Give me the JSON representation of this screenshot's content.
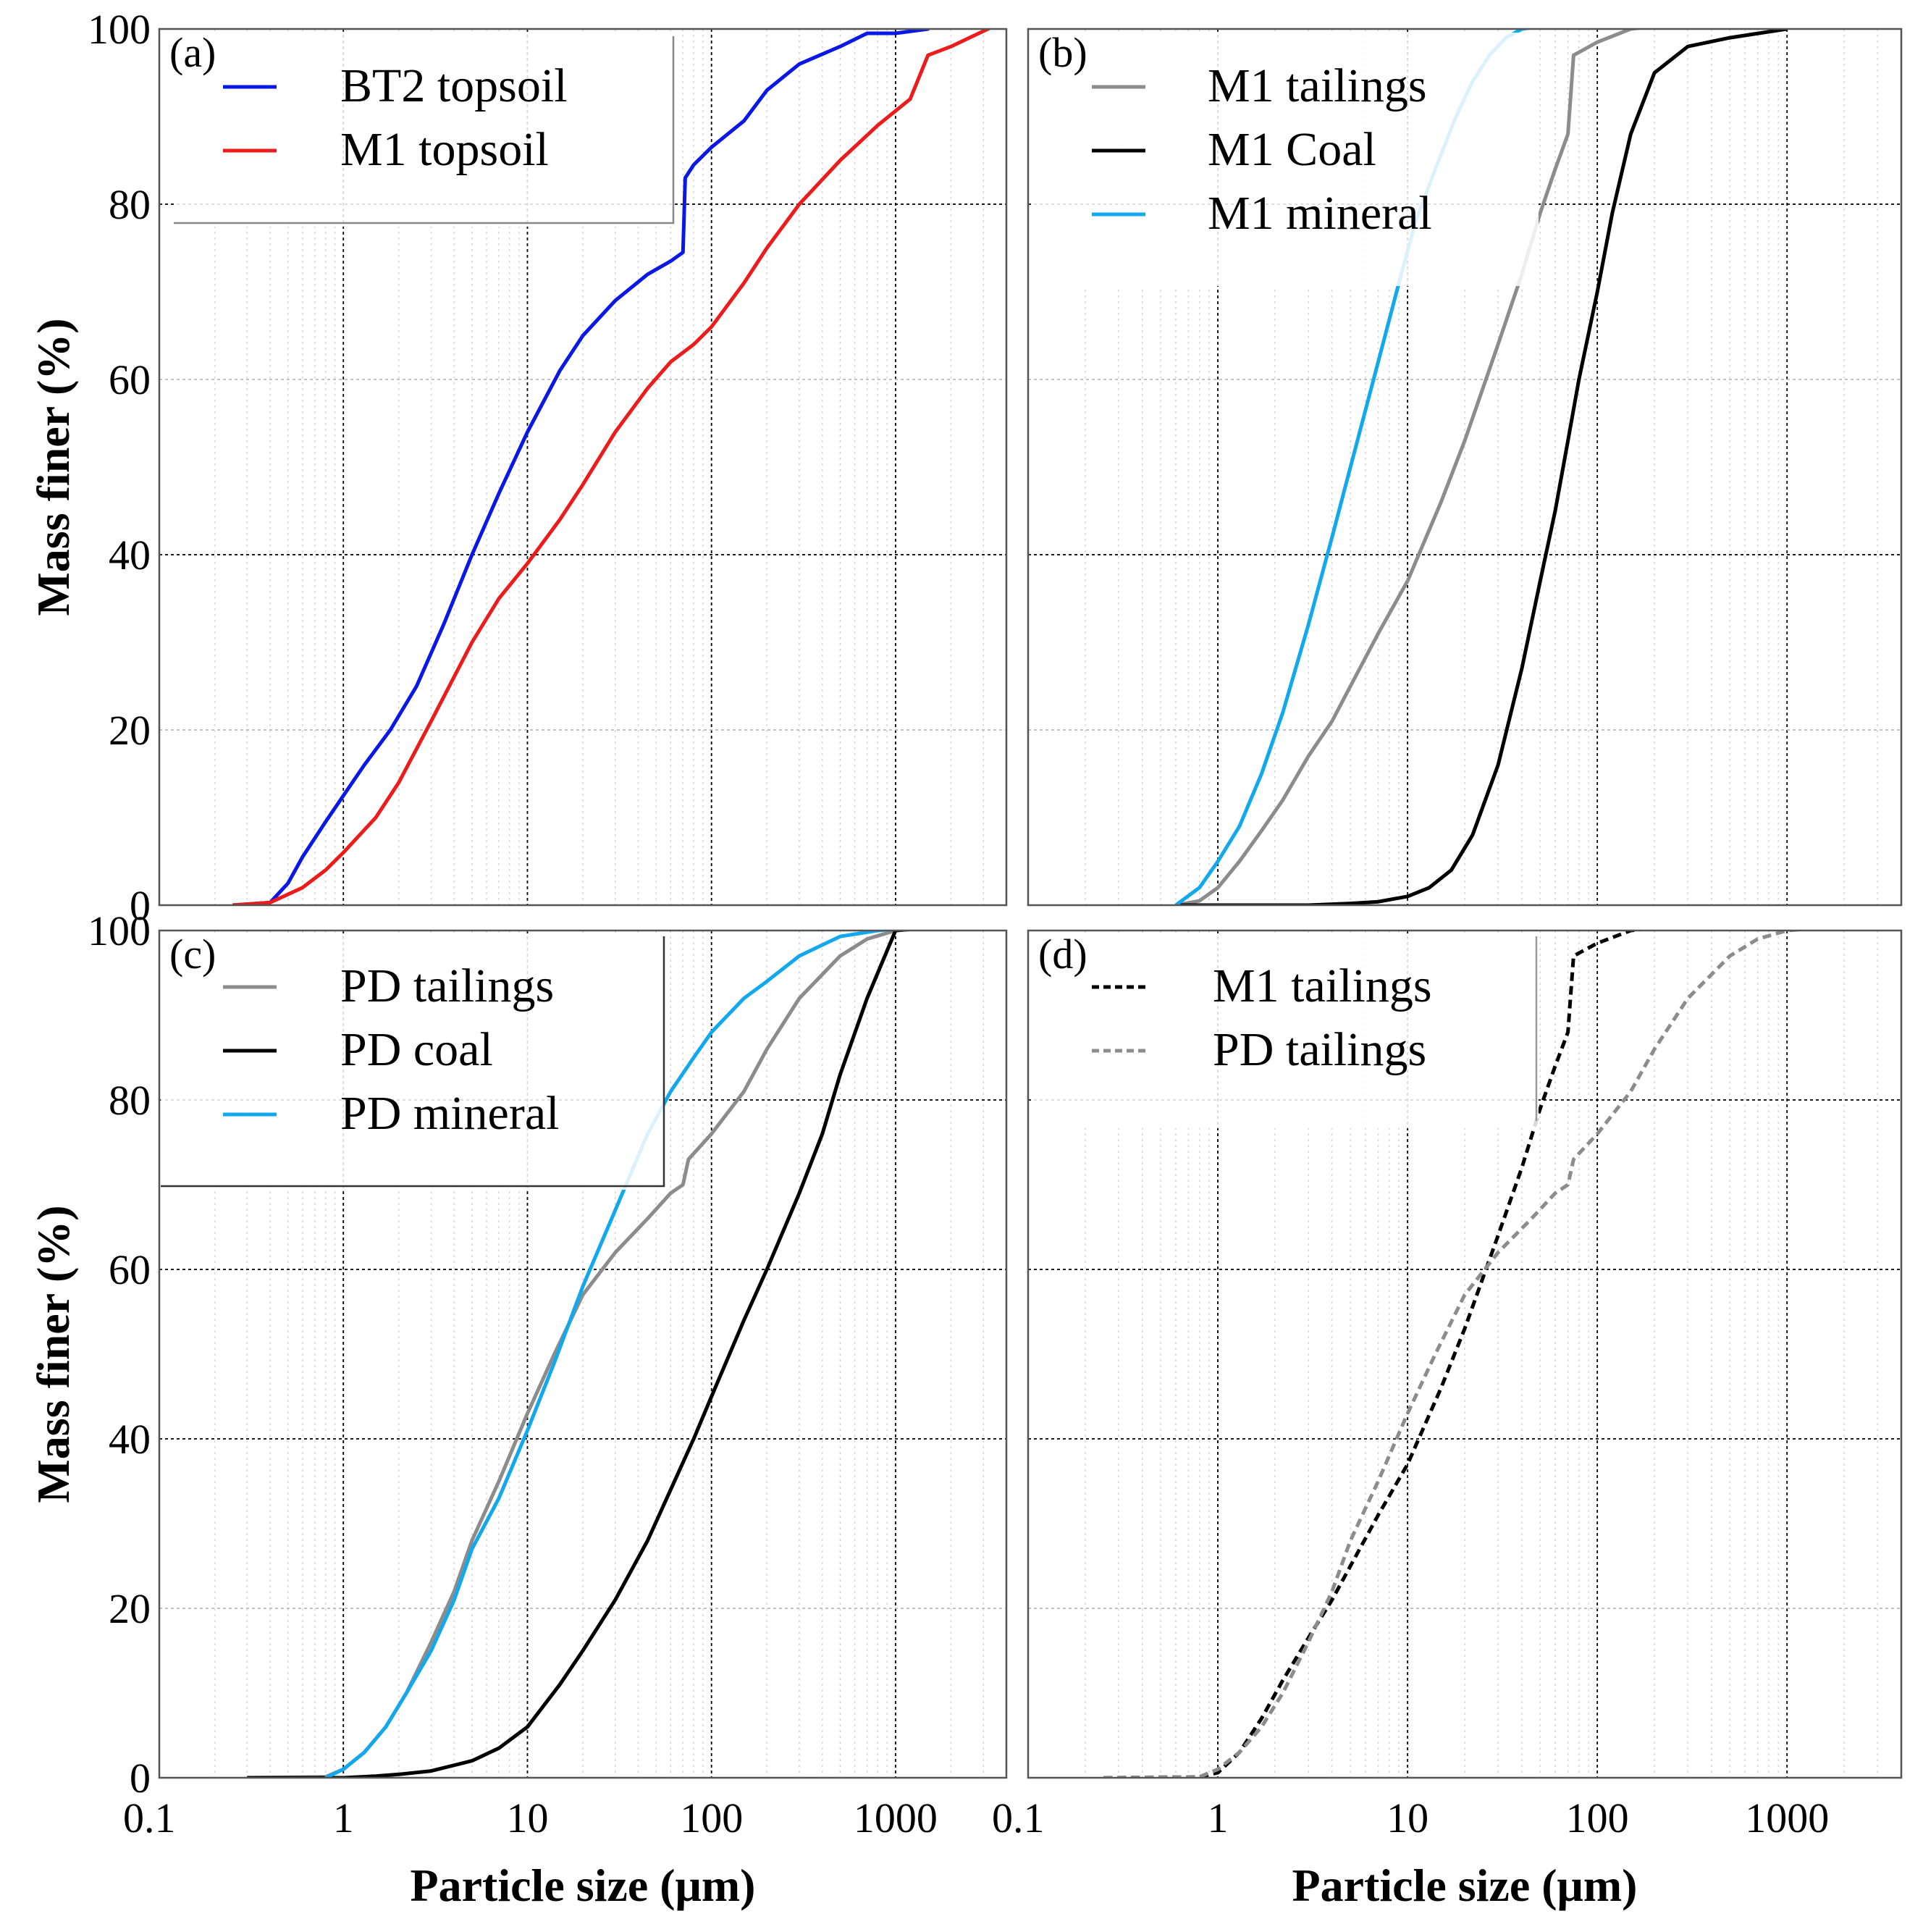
{
  "figure": {
    "x_axis_title": "Particle size (μm)",
    "y_axis_title": "Mass finer (%)",
    "x_tick_labels": [
      "0.1",
      "1",
      "10",
      "100",
      "1000"
    ],
    "y_tick_labels": [
      "0",
      "20",
      "40",
      "60",
      "80",
      "100"
    ]
  },
  "chart_data": [
    {
      "panel": "(a)",
      "type": "line",
      "xscale": "log",
      "xlim": [
        0.1,
        4000
      ],
      "ylim": [
        0,
        100
      ],
      "xlabel": "",
      "ylabel": "Mass finer (%)",
      "legend_position": "top-left",
      "series": [
        {
          "name": "BT2 topsoil",
          "color": "#0a18e6",
          "dash": "solid",
          "x": [
            0.25,
            0.4,
            0.5,
            0.6,
            0.8,
            1.0,
            1.3,
            1.8,
            2.5,
            3.5,
            5,
            7,
            10,
            15,
            20,
            30,
            45,
            60,
            70,
            72,
            80,
            100,
            150,
            200,
            300,
            500,
            700,
            1000,
            1500,
            1800
          ],
          "y": [
            0,
            0.3,
            2.5,
            5.5,
            9.5,
            12.5,
            16,
            20,
            25,
            32,
            40,
            47,
            54,
            61,
            65,
            69,
            72,
            73.5,
            74.5,
            83,
            84.5,
            86.5,
            89.5,
            93,
            96,
            98,
            99.5,
            99.5,
            100,
            102
          ]
        },
        {
          "name": "M1 topsoil",
          "color": "#ec1c1c",
          "dash": "solid",
          "x": [
            0.25,
            0.4,
            0.6,
            0.8,
            1.0,
            1.5,
            2,
            3,
            5,
            7,
            10,
            15,
            20,
            30,
            45,
            60,
            80,
            100,
            150,
            200,
            300,
            500,
            800,
            1200,
            1500,
            2000,
            4000
          ],
          "y": [
            0,
            0.3,
            2,
            4,
            6,
            10,
            14,
            21,
            30,
            35,
            39,
            44,
            48,
            54,
            59,
            62,
            64,
            66,
            71,
            75,
            80,
            85,
            89,
            92,
            97,
            98,
            101
          ]
        }
      ]
    },
    {
      "panel": "(b)",
      "type": "line",
      "xscale": "log",
      "xlim": [
        0.1,
        4000
      ],
      "ylim": [
        0,
        100
      ],
      "xlabel": "",
      "ylabel": "",
      "legend_position": "top-left",
      "series": [
        {
          "name": "M1 tailings",
          "color": "#8c8c8c",
          "dash": "solid",
          "x": [
            0.6,
            0.8,
            1.0,
            1.3,
            1.7,
            2.2,
            3,
            4,
            5,
            7,
            10,
            15,
            20,
            30,
            40,
            50,
            60,
            70,
            75,
            100,
            150,
            200,
            300
          ],
          "y": [
            0,
            0.5,
            2,
            5,
            8.5,
            12,
            17,
            21,
            25,
            31,
            37,
            46,
            53,
            64,
            72,
            79,
            84,
            88,
            97,
            98.5,
            100,
            100.3,
            100.3
          ]
        },
        {
          "name": "M1 Coal",
          "color": "#000000",
          "dash": "solid",
          "x": [
            0.6,
            3,
            5,
            7,
            10,
            13,
            17,
            22,
            30,
            40,
            50,
            60,
            70,
            80,
            100,
            120,
            150,
            200,
            300,
            500,
            1000
          ],
          "y": [
            0,
            0,
            0.2,
            0.4,
            1,
            2,
            4,
            8,
            16,
            27,
            37,
            45,
            53,
            60,
            70,
            79,
            88,
            95,
            98,
            99,
            100
          ]
        },
        {
          "name": "M1 mineral",
          "color": "#12a8ee",
          "dash": "solid",
          "x": [
            0.6,
            0.8,
            1.0,
            1.3,
            1.7,
            2.2,
            3,
            4,
            5,
            7,
            9,
            11,
            14,
            18,
            22,
            27,
            33,
            40,
            60,
            100,
            300
          ],
          "y": [
            0,
            2,
            5,
            9,
            15,
            22,
            32,
            42,
            50,
            62,
            71,
            78,
            84,
            90,
            94,
            97,
            99,
            100,
            100.5,
            100.5,
            100.5
          ]
        }
      ]
    },
    {
      "panel": "(c)",
      "type": "line",
      "xscale": "log",
      "xlim": [
        0.1,
        4000
      ],
      "ylim": [
        0,
        100
      ],
      "xlabel": "Particle size (μm)",
      "ylabel": "Mass finer (%)",
      "legend_position": "top-left",
      "series": [
        {
          "name": "PD tailings",
          "color": "#8c8c8c",
          "dash": "solid",
          "x": [
            0.3,
            0.8,
            1.0,
            1.3,
            1.7,
            2.2,
            3,
            4,
            5,
            7,
            10,
            14,
            20,
            30,
            45,
            60,
            70,
            75,
            100,
            150,
            200,
            300,
            500,
            700,
            1000,
            1500,
            4000
          ],
          "y": [
            0,
            0.1,
            1,
            3,
            6,
            10,
            16,
            22,
            28,
            35,
            43,
            50,
            57,
            62,
            66,
            69,
            70,
            73,
            76,
            81,
            86,
            92,
            97,
            99,
            100,
            100.3,
            100.3
          ]
        },
        {
          "name": "PD coal",
          "color": "#000000",
          "dash": "solid",
          "x": [
            0.3,
            1.0,
            1.5,
            2,
            3,
            5,
            7,
            10,
            15,
            20,
            30,
            45,
            60,
            80,
            100,
            150,
            200,
            300,
            400,
            500,
            700,
            1000,
            1500,
            4000
          ],
          "y": [
            0,
            0,
            0.2,
            0.4,
            0.8,
            2,
            3.5,
            6,
            11,
            15,
            21,
            28,
            34,
            40,
            45,
            54,
            60,
            69,
            76,
            83,
            92,
            100,
            100.3,
            100.3
          ]
        },
        {
          "name": "PD mineral",
          "color": "#12a8ee",
          "dash": "solid",
          "x": [
            0.8,
            1.0,
            1.3,
            1.7,
            2.2,
            3,
            4,
            5,
            7,
            10,
            14,
            20,
            30,
            45,
            60,
            80,
            100,
            150,
            200,
            300,
            500,
            800,
            1200,
            4000
          ],
          "y": [
            0,
            1,
            3,
            6,
            10,
            15,
            21,
            27,
            33,
            41,
            49,
            58,
            67,
            76,
            81,
            85,
            88,
            92,
            94,
            97,
            99.3,
            100,
            100.3,
            100.3
          ]
        }
      ]
    },
    {
      "panel": "(d)",
      "type": "line",
      "xscale": "log",
      "xlim": [
        0.1,
        4000
      ],
      "ylim": [
        0,
        100
      ],
      "xlabel": "Particle size (μm)",
      "ylabel": "",
      "legend_position": "top-left",
      "series": [
        {
          "name": "M1 tailings",
          "color": "#000000",
          "dash": "dashed",
          "x": [
            0.25,
            0.8,
            1.0,
            1.3,
            1.7,
            2.2,
            3,
            4,
            5,
            7,
            10,
            15,
            20,
            30,
            40,
            50,
            60,
            70,
            75,
            100,
            150,
            200,
            300
          ],
          "y": [
            0,
            0.1,
            0.6,
            3,
            7,
            11.5,
            16.5,
            21,
            25,
            31,
            37,
            46,
            53,
            64,
            72,
            79,
            84,
            88,
            97,
            98.5,
            100,
            100.3,
            100.3
          ]
        },
        {
          "name": "PD tailings",
          "color": "#8c8c8c",
          "dash": "dashed",
          "x": [
            0.25,
            0.8,
            1.0,
            1.3,
            1.7,
            2.2,
            3,
            4,
            5,
            7,
            10,
            14,
            20,
            30,
            45,
            60,
            70,
            75,
            100,
            150,
            200,
            300,
            500,
            700,
            1000,
            1500,
            4000
          ],
          "y": [
            0,
            0.1,
            1,
            3,
            6,
            10,
            16,
            22,
            28,
            35,
            43,
            50,
            57,
            62,
            66,
            69,
            70,
            73,
            76,
            81,
            86,
            92,
            97,
            99,
            100,
            100.3,
            100.3
          ]
        }
      ]
    }
  ]
}
